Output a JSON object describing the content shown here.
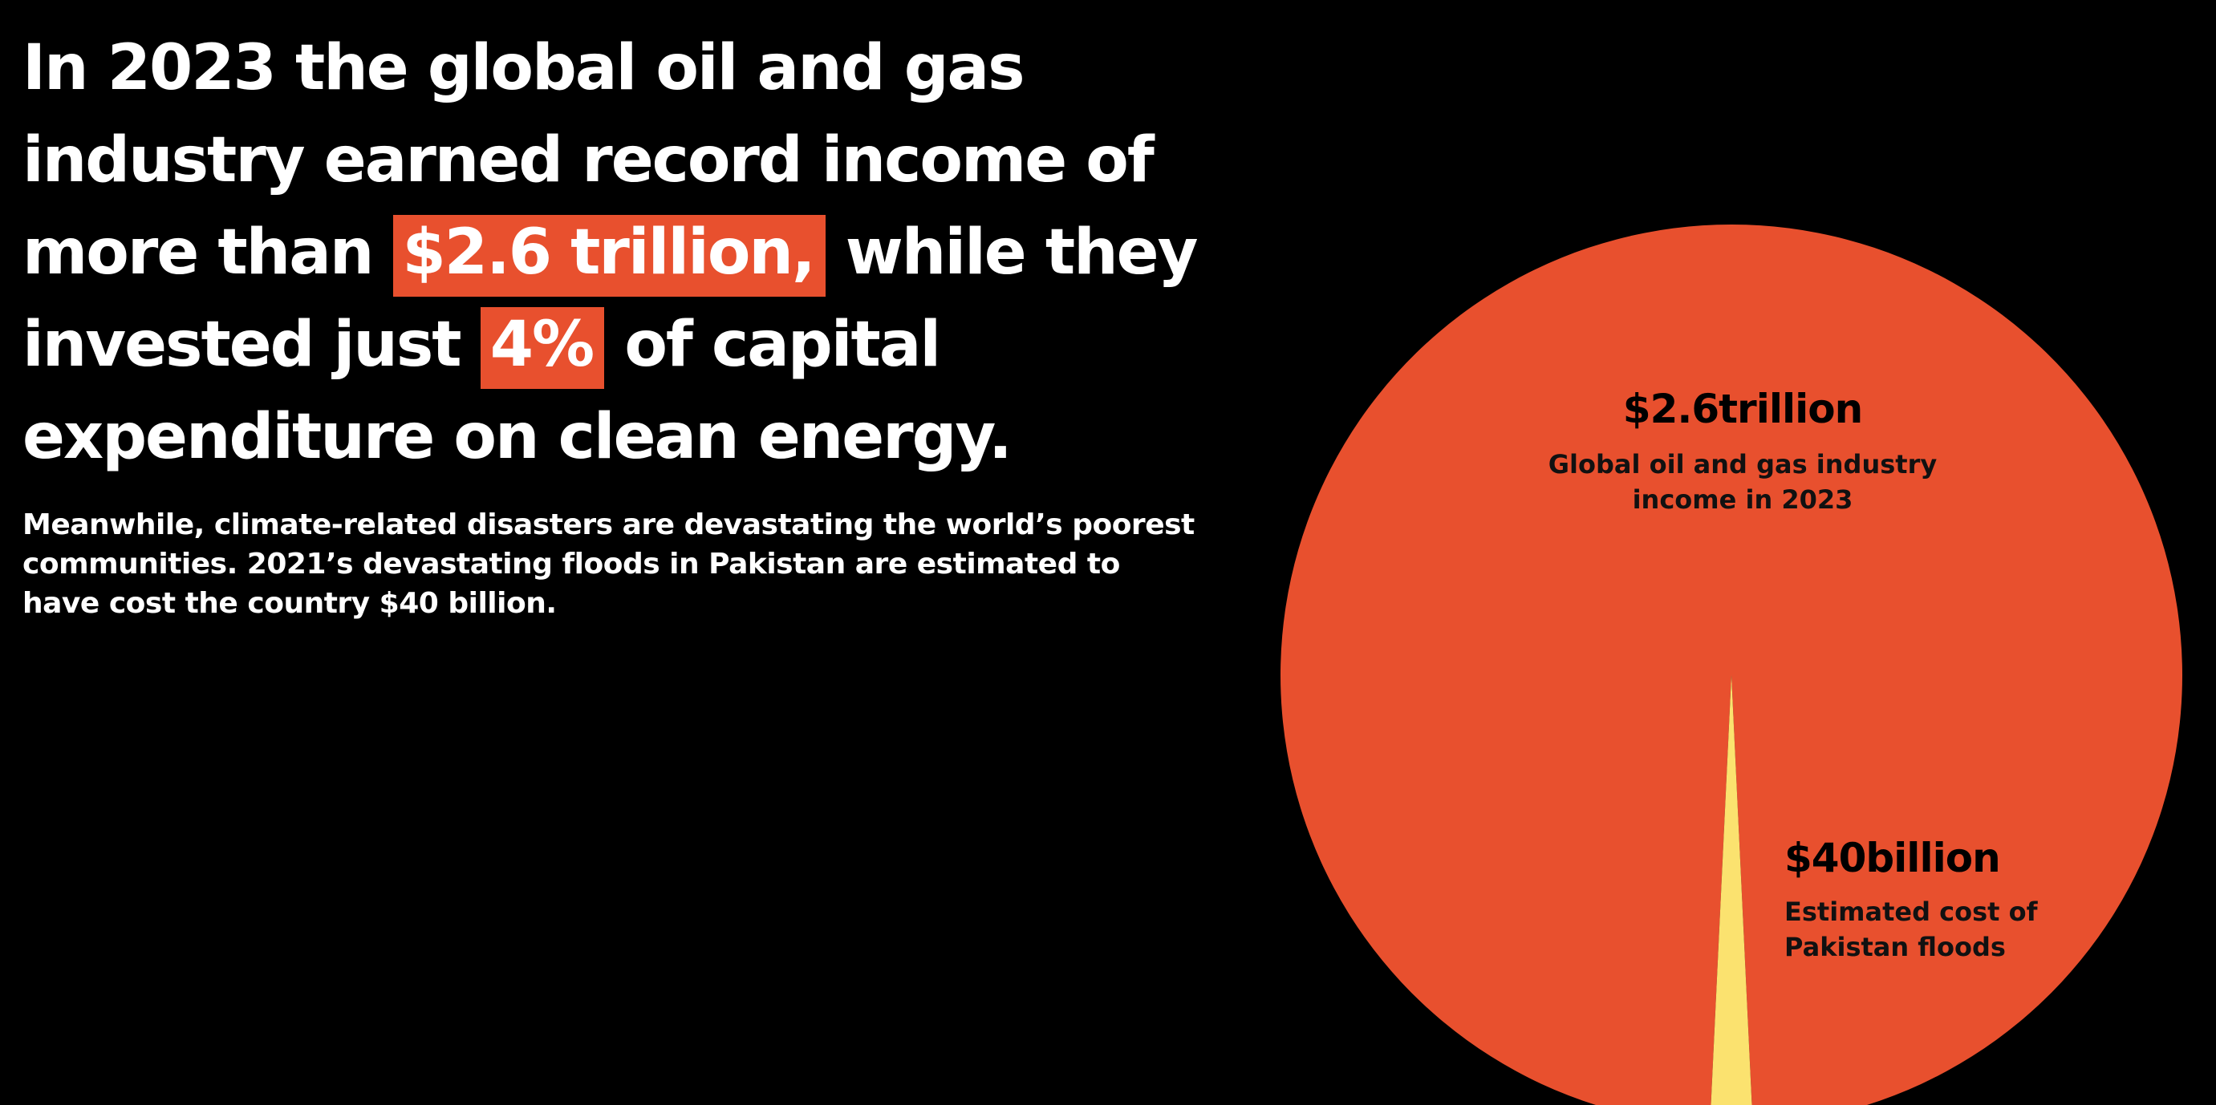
{
  "headline": {
    "part1": "In 2023 the global oil and gas industry earned record income of more than ",
    "highlight1": "$2.6 trillion,",
    "part2": " while they invested just ",
    "highlight2": "4%",
    "part3": " of capital expenditure on clean energy."
  },
  "body": "Meanwhile, climate-related disasters are devastating the world’s poorest communities. 2021’s devastating floods in Pakistan are estimated to have cost the country $40 billion.",
  "colors": {
    "background": "#000000",
    "accent": "#e8502e",
    "small_slice": "#fbe26f",
    "text": "#ffffff"
  },
  "chart_data": {
    "type": "pie",
    "unit": "USD billion",
    "slices": [
      {
        "value": 2600,
        "label": "$2.6trillion",
        "description_line1": "Global oil and gas industry",
        "description_line2": "income in 2023",
        "color": "#e8502e"
      },
      {
        "value": 40,
        "label": "$40billion",
        "description_line1": "Estimated cost of",
        "description_line2": "Pakistan floods",
        "color": "#fbe26f"
      }
    ]
  }
}
